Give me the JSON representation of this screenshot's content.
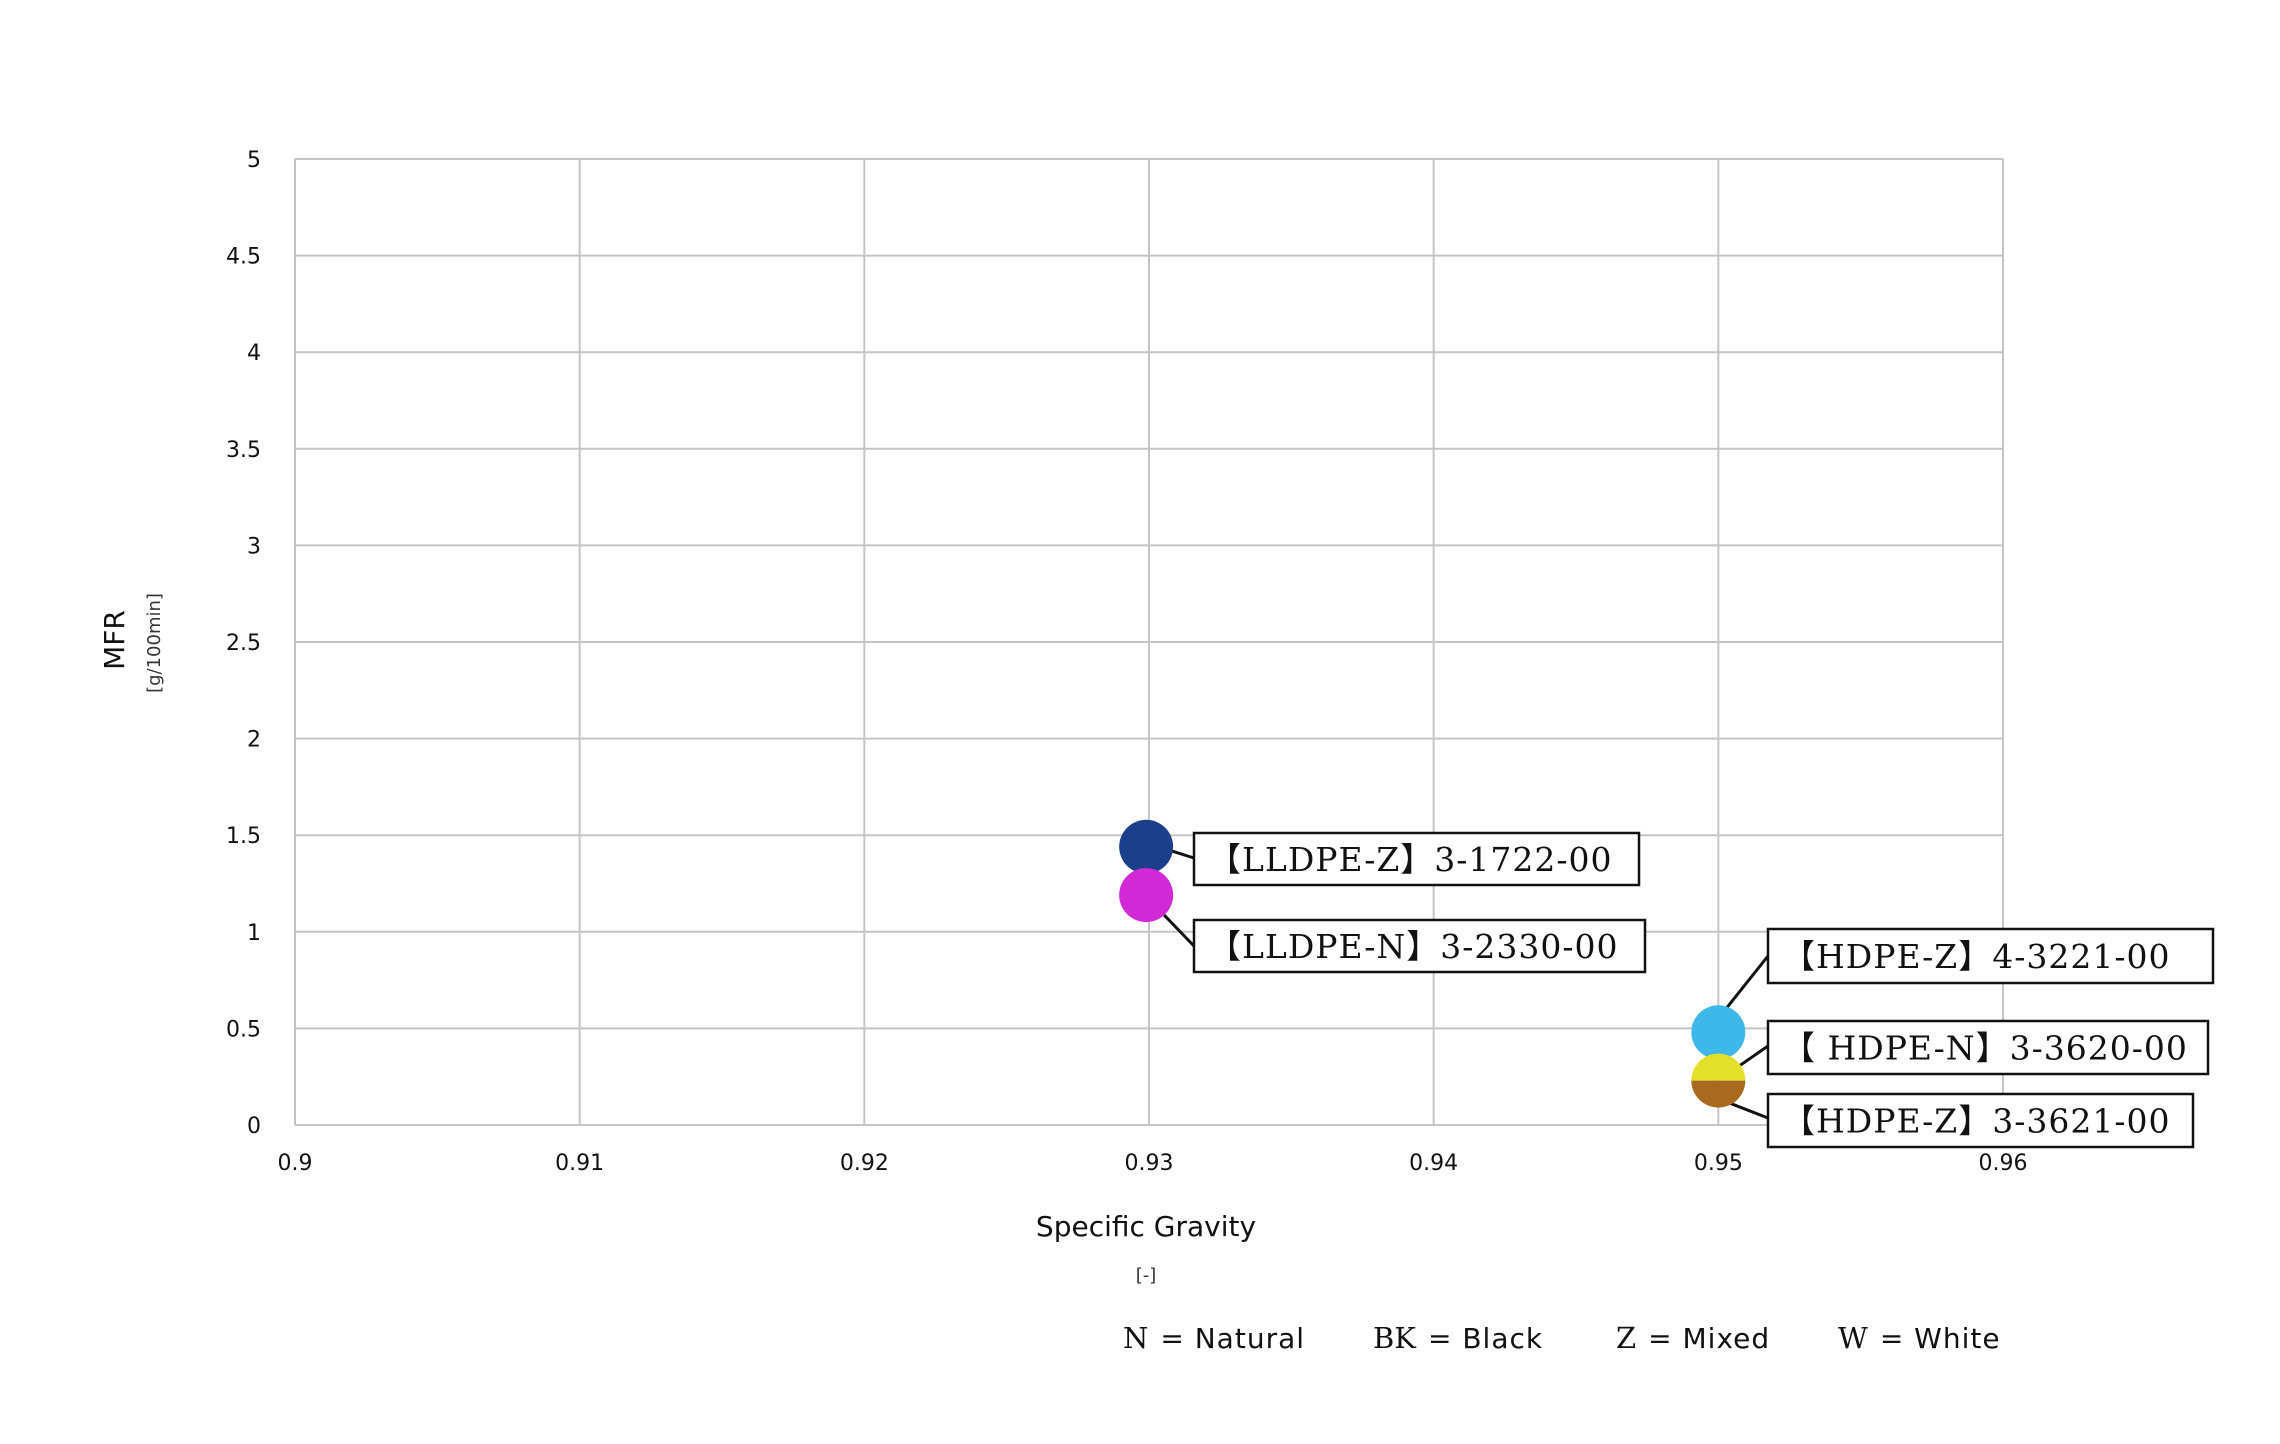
{
  "chart_data": {
    "type": "scatter",
    "title": "",
    "xlabel": "Specific Gravity",
    "xunit": "[-]",
    "ylabel": "MFR",
    "yunit": "[g/100min]",
    "xlim": [
      0.9,
      0.96
    ],
    "ylim": [
      0,
      5
    ],
    "grid": true,
    "x_ticks": [
      "0.9",
      "0.91",
      "0.92",
      "0.93",
      "0.94",
      "0.95",
      "0.96"
    ],
    "y_ticks": [
      "0",
      "0.5",
      "1",
      "1.5",
      "2",
      "2.5",
      "3",
      "3.5",
      "4",
      "4.5",
      "5"
    ],
    "points": [
      {
        "label": "【LLDPE-Z】3-1722-00",
        "x": 0.9299,
        "y": 1.44,
        "color": "#1b3f8b"
      },
      {
        "label": "【LLDPE-N】3-2330-00",
        "x": 0.9299,
        "y": 1.19,
        "color": "#d129d6"
      },
      {
        "label": "【HDPE-Z】4-3221-00",
        "x": 0.95,
        "y": 0.48,
        "color": "#3db8e8"
      },
      {
        "label": "【 HDPE-N】3-3620-00",
        "x": 0.95,
        "y": 0.23,
        "color": "#e3e02a"
      },
      {
        "label": "【HDPE-Z】3-3621-00",
        "x": 0.95,
        "y": 0.23,
        "color": "#a86a1f"
      }
    ],
    "legend": [
      {
        "key": "N",
        "value": "= Natural"
      },
      {
        "key": "BK",
        "value": "= Black"
      },
      {
        "key": "Z",
        "value": "= Mixed"
      },
      {
        "key": "W",
        "value": "= White"
      }
    ]
  }
}
